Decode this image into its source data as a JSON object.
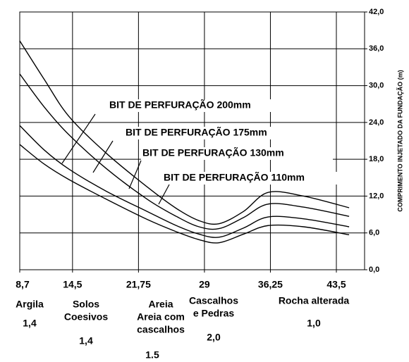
{
  "chart_data": {
    "type": "line",
    "y_axis_label": "COMPRIMENTO INJETADO DA FUNDAÇÃO (m)",
    "x": [
      8.7,
      11.4,
      14.1,
      18.2,
      22.7,
      25.9,
      28.4,
      30.6,
      33.3,
      36,
      39.9,
      44.9
    ],
    "series": [
      {
        "name": "BIT DE PERFURAÇÃO 200mm",
        "color": "#000000",
        "values": [
          37.3,
          31,
          25,
          19,
          13.5,
          10,
          8,
          7.5,
          9.5,
          12.6,
          12,
          10.1
        ]
      },
      {
        "name": "BIT DE PERFURAÇÃO 175mm",
        "color": "#000000",
        "values": [
          31.9,
          26.5,
          22,
          16.5,
          11.5,
          8.7,
          7,
          6.7,
          8.5,
          10.7,
          10.2,
          8.7
        ]
      },
      {
        "name": "BIT DE PERFURAÇÃO 130mm",
        "color": "#000000",
        "values": [
          23.5,
          19.5,
          16.4,
          12.8,
          9.5,
          7.2,
          5.8,
          5.3,
          6.8,
          8.6,
          8.3,
          7
        ]
      },
      {
        "name": "BIT DE PERFURAÇÃO 110mm",
        "color": "#000000",
        "values": [
          20.4,
          17.2,
          14.7,
          11.5,
          8.2,
          6.2,
          4.9,
          4.4,
          5.8,
          7.2,
          7,
          5.7
        ]
      }
    ],
    "xlim": [
      8.7,
      46.6
    ],
    "xticks": [
      {
        "value": 8.7,
        "label": "8,7"
      },
      {
        "value": 14.5,
        "label": "14,5"
      },
      {
        "value": 21.75,
        "label": "21,75"
      },
      29,
      {
        "value": 36.25,
        "label": "36,25"
      },
      {
        "value": 43.5,
        "label": "43,5"
      }
    ],
    "ylim": [
      0,
      42
    ],
    "yticks": [
      {
        "value": 0,
        "label": "0,0"
      },
      {
        "value": 6,
        "label": "6,0"
      },
      {
        "value": 12,
        "label": "12,0"
      },
      {
        "value": 18,
        "label": "18,0"
      },
      {
        "value": 24,
        "label": "24,0"
      },
      {
        "value": 30,
        "label": "30,0"
      },
      {
        "value": 36,
        "label": "36,0"
      },
      {
        "value": 42,
        "label": "42,0"
      }
    ],
    "grid": true,
    "soil_labels": [
      {
        "lines": [
          "Argila"
        ],
        "factor": "1,4"
      },
      {
        "lines": [
          "Solos",
          "Coesivos"
        ],
        "factor": "1,4"
      },
      {
        "lines": [
          "Areia",
          "Areia com",
          "cascalhos"
        ],
        "factor": "1.5"
      },
      {
        "lines": [
          "Cascalhos",
          "e Pedras"
        ],
        "factor": "2,0"
      },
      {
        "lines": [
          "Rocha alterada"
        ],
        "factor": "1,0"
      }
    ]
  }
}
